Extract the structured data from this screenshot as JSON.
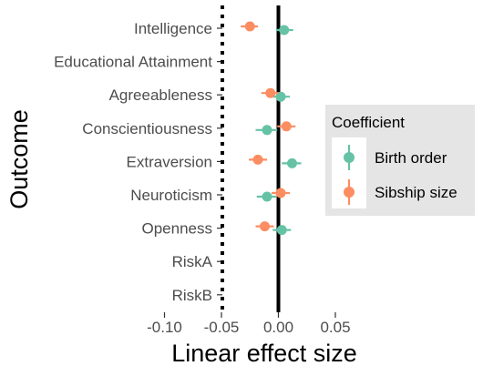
{
  "chart_data": {
    "type": "scatter",
    "variant": "coefficient-plot-with-error-bars",
    "title": "",
    "xlabel": "Linear effect size",
    "ylabel": "Outcome",
    "xlim": [
      -0.105,
      0.055
    ],
    "x_ticks": [
      -0.1,
      -0.05,
      0.0,
      0.05
    ],
    "x_tick_labels": [
      "-0.10",
      "-0.05",
      "0.00",
      "0.05"
    ],
    "reference_line_x": 0.0,
    "grid": false,
    "legend_position": "right",
    "categories": [
      "Intelligence",
      "Educational Attainment",
      "Agreeableness",
      "Conscientiousness",
      "Extraversion",
      "Neuroticism",
      "Openness",
      "RiskA",
      "RiskB"
    ],
    "legend": {
      "title": "Coefficient"
    },
    "series": [
      {
        "name": "Birth order",
        "color": "#66c2a5",
        "points": [
          {
            "category": "Intelligence",
            "estimate": 0.005,
            "lower": -0.002,
            "upper": 0.013
          },
          {
            "category": "Agreeableness",
            "estimate": 0.002,
            "lower": -0.006,
            "upper": 0.01
          },
          {
            "category": "Conscientiousness",
            "estimate": -0.01,
            "lower": -0.02,
            "upper": -0.001
          },
          {
            "category": "Extraversion",
            "estimate": 0.012,
            "lower": 0.003,
            "upper": 0.02
          },
          {
            "category": "Neuroticism",
            "estimate": -0.01,
            "lower": -0.019,
            "upper": -0.002
          },
          {
            "category": "Openness",
            "estimate": 0.003,
            "lower": -0.005,
            "upper": 0.011
          }
        ]
      },
      {
        "name": "Sibship size",
        "color": "#fc8d62",
        "points": [
          {
            "category": "Intelligence",
            "estimate": -0.025,
            "lower": -0.033,
            "upper": -0.018
          },
          {
            "category": "Agreeableness",
            "estimate": -0.007,
            "lower": -0.015,
            "upper": 0.0
          },
          {
            "category": "Conscientiousness",
            "estimate": 0.007,
            "lower": -0.001,
            "upper": 0.015
          },
          {
            "category": "Extraversion",
            "estimate": -0.018,
            "lower": -0.026,
            "upper": -0.01
          },
          {
            "category": "Neuroticism",
            "estimate": 0.002,
            "lower": -0.006,
            "upper": 0.01
          },
          {
            "category": "Openness",
            "estimate": -0.012,
            "lower": -0.02,
            "upper": -0.004
          }
        ]
      }
    ]
  }
}
